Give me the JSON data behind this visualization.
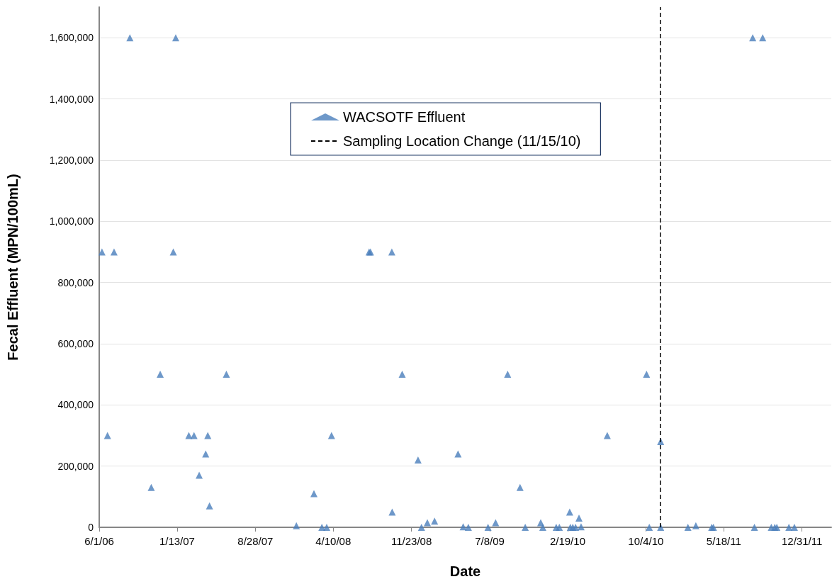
{
  "chart_data": {
    "type": "scatter",
    "xlabel": "Date",
    "ylabel": "Fecal Effluent (MPN/100mL)",
    "x": [
      "2006-06-09",
      "2006-06-25",
      "2006-07-14",
      "2006-08-29",
      "2006-10-30",
      "2006-11-25",
      "2007-01-02",
      "2007-01-09",
      "2007-02-16",
      "2007-03-03",
      "2007-03-18",
      "2007-04-06",
      "2007-04-12",
      "2007-04-17",
      "2007-06-05",
      "2007-12-25",
      "2008-02-14",
      "2008-03-08",
      "2008-03-22",
      "2008-04-05",
      "2008-07-23",
      "2008-07-27",
      "2008-09-27",
      "2008-09-28",
      "2008-10-27",
      "2008-12-12",
      "2008-12-22",
      "2009-01-08",
      "2009-01-29",
      "2009-04-07",
      "2009-04-22",
      "2009-05-07",
      "2009-07-03",
      "2009-07-25",
      "2009-08-29",
      "2009-10-04",
      "2009-10-19",
      "2009-12-03",
      "2009-12-09",
      "2010-01-17",
      "2010-01-26",
      "2010-02-25",
      "2010-02-27",
      "2010-03-06",
      "2010-03-14",
      "2010-03-24",
      "2010-03-30",
      "2010-06-14",
      "2010-10-06",
      "2010-10-14",
      "2010-11-16",
      "2010-11-16",
      "2011-02-03",
      "2011-02-26",
      "2011-04-13",
      "2011-04-18",
      "2011-08-10",
      "2011-08-15",
      "2011-09-08",
      "2011-10-03",
      "2011-10-13",
      "2011-10-19",
      "2011-11-23",
      "2011-12-09"
    ],
    "series": [
      {
        "name": "WACSOTF Effluent",
        "color": "#4a7ebb",
        "values": [
          900000,
          300000,
          900000,
          1600000,
          130000,
          500000,
          900000,
          1600000,
          300000,
          300000,
          170000,
          240000,
          300000,
          70000,
          500000,
          5000,
          110000,
          0,
          0,
          300000,
          900000,
          900000,
          900000,
          50000,
          500000,
          220000,
          0,
          15000,
          20000,
          240000,
          2000,
          0,
          0,
          15000,
          500000,
          130000,
          0,
          15000,
          0,
          0,
          0,
          50000,
          0,
          0,
          0,
          30000,
          2000,
          300000,
          500000,
          0,
          280000,
          0,
          0,
          5000,
          0,
          0,
          1600000,
          0,
          1600000,
          0,
          0,
          0,
          0,
          0
        ]
      }
    ],
    "marker": "triangle",
    "xlim": [
      "2006-06-01",
      "2012-03-25"
    ],
    "xticks": [
      {
        "value": "2006-06-01",
        "label": "6/1/06"
      },
      {
        "value": "2007-01-13",
        "label": "1/13/07"
      },
      {
        "value": "2007-08-28",
        "label": "8/28/07"
      },
      {
        "value": "2008-04-10",
        "label": "4/10/08"
      },
      {
        "value": "2008-11-23",
        "label": "11/23/08"
      },
      {
        "value": "2009-07-08",
        "label": "7/8/09"
      },
      {
        "value": "2010-02-19",
        "label": "2/19/10"
      },
      {
        "value": "2010-10-04",
        "label": "10/4/10"
      },
      {
        "value": "2011-05-18",
        "label": "5/18/11"
      },
      {
        "value": "2011-12-31",
        "label": "12/31/11"
      }
    ],
    "ylim": [
      0,
      1700000
    ],
    "yticks": [
      {
        "value": 0,
        "label": "0"
      },
      {
        "value": 200000,
        "label": "200,000"
      },
      {
        "value": 400000,
        "label": "400,000"
      },
      {
        "value": 600000,
        "label": "600,000"
      },
      {
        "value": 800000,
        "label": "800,000"
      },
      {
        "value": 1000000,
        "label": "1,000,000"
      },
      {
        "value": 1200000,
        "label": "1,200,000"
      },
      {
        "value": 1400000,
        "label": "1,400,000"
      },
      {
        "value": 1600000,
        "label": "1,600,000"
      }
    ],
    "ref_lines": [
      {
        "axis": "x",
        "value": "2010-11-15",
        "label": "Sampling Location Change (11/15/10)",
        "color": "#000000",
        "line_style": "dashed"
      }
    ],
    "grid": "y",
    "legend": "top"
  }
}
